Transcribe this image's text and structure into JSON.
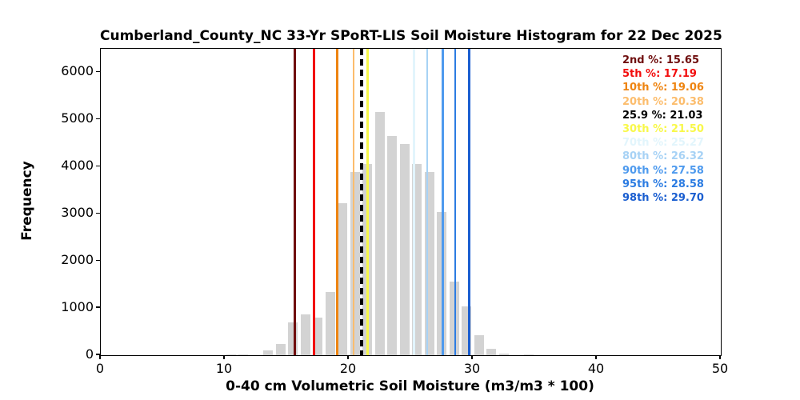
{
  "chart_data": {
    "type": "bar",
    "title": "Cumberland_County_NC 33-Yr SPoRT-LIS Soil Moisture Histogram for 22 Dec 2025",
    "xlabel": "0-40 cm Volumetric Soil Moisture (m3/m3 * 100)",
    "ylabel": "Frequency",
    "xlim": [
      0,
      50
    ],
    "ylim": [
      0,
      6500
    ],
    "xticks": [
      0,
      10,
      20,
      30,
      40,
      50
    ],
    "yticks": [
      0,
      1000,
      2000,
      3000,
      4000,
      5000,
      6000
    ],
    "grid": false,
    "bar_color": "#d3d3d3",
    "bin_width": 1,
    "bar_rwidth": 0.76,
    "categories": [
      10.5,
      11.5,
      12.5,
      13.5,
      14.5,
      15.5,
      16.5,
      17.5,
      18.5,
      19.5,
      20.5,
      21.5,
      22.5,
      23.5,
      24.5,
      25.5,
      26.5,
      27.5,
      28.5,
      29.5,
      30.5,
      31.5,
      32.5,
      33.5,
      34.5
    ],
    "values": [
      25,
      25,
      0,
      100,
      240,
      690,
      870,
      790,
      1340,
      3220,
      3890,
      4050,
      5160,
      4650,
      4480,
      4050,
      3890,
      3040,
      1570,
      1030,
      420,
      130,
      35,
      0,
      20
    ],
    "legend_position": "upper right",
    "percentile_lines": [
      {
        "text": "2nd %: 15.65",
        "value": 15.65,
        "color": "#6f0e0e",
        "dashed": false
      },
      {
        "text": "5th %: 17.19",
        "value": 17.19,
        "color": "#f20d0d",
        "dashed": false
      },
      {
        "text": "10th %: 19.06",
        "value": 19.06,
        "color": "#ee8411",
        "dashed": false
      },
      {
        "text": "20th %: 20.38",
        "value": 20.38,
        "color": "#fcbd6d",
        "dashed": false
      },
      {
        "text": "25.9 %: 21.03",
        "value": 21.03,
        "color": "#000000",
        "dashed": true
      },
      {
        "text": "30th %: 21.50",
        "value": 21.5,
        "color": "#f8f84a",
        "dashed": false
      },
      {
        "text": "70th %: 25.27",
        "value": 25.27,
        "color": "#e2f5fc",
        "dashed": false
      },
      {
        "text": "80th %: 26.32",
        "value": 26.32,
        "color": "#a7d2f5",
        "dashed": false
      },
      {
        "text": "90th %: 27.58",
        "value": 27.58,
        "color": "#4e9aee",
        "dashed": false
      },
      {
        "text": "95th %: 28.58",
        "value": 28.58,
        "color": "#2c7ce2",
        "dashed": false
      },
      {
        "text": "98th %: 29.70",
        "value": 29.7,
        "color": "#1a5ed0",
        "dashed": false
      }
    ]
  }
}
